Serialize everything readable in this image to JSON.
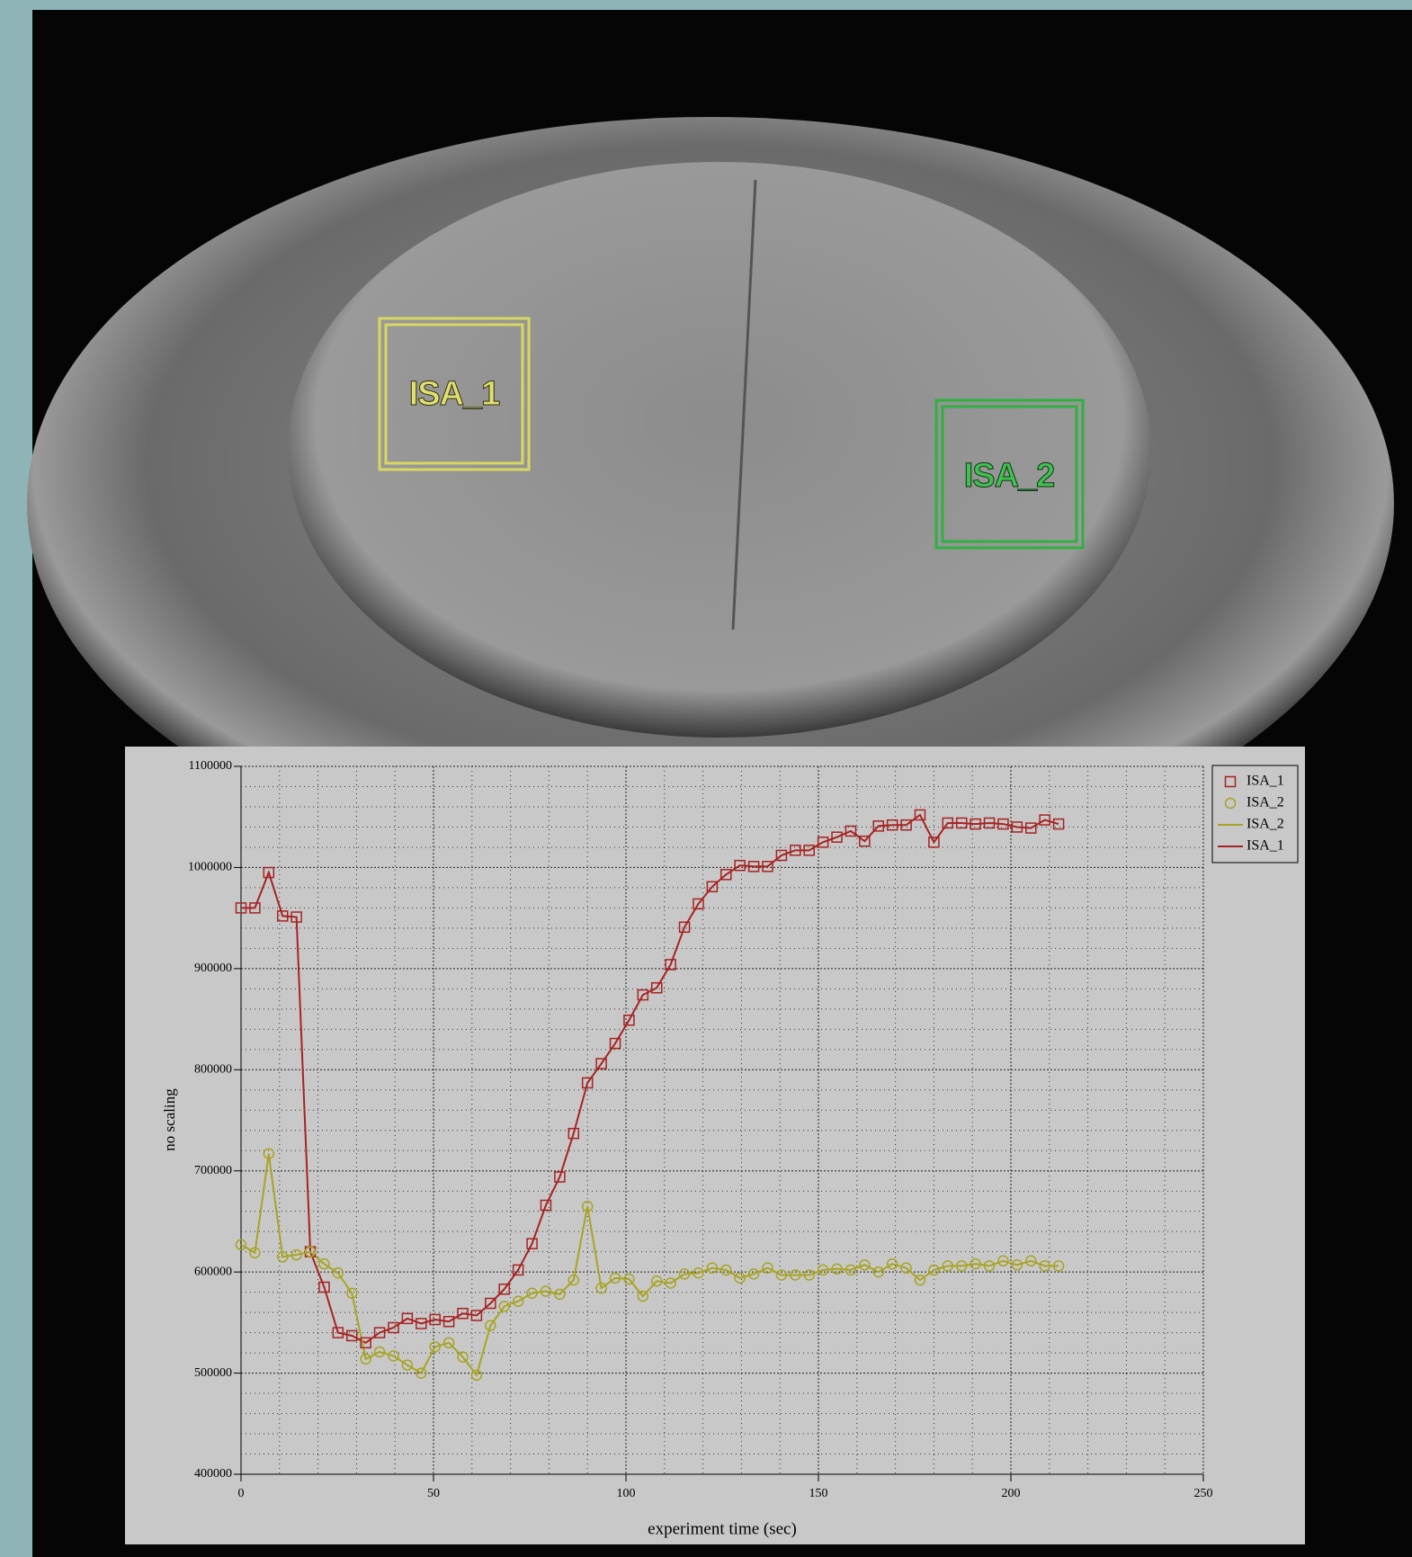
{
  "image": {
    "roi_labels": [
      "ISA_1",
      "ISA_2"
    ]
  },
  "chart_data": {
    "type": "line",
    "x_label": "experiment time (sec)",
    "y_label": "no scaling",
    "xlim": [
      0,
      250
    ],
    "xticks": [
      0,
      50,
      100,
      150,
      200,
      250
    ],
    "ylim": [
      400000,
      1100000
    ],
    "yticks": [
      400000,
      500000,
      600000,
      700000,
      800000,
      900000,
      1000000,
      1100000
    ],
    "grid": true,
    "legend_position": "upper-right",
    "legend": [
      "ISA_1",
      "ISA_2",
      "ISA_2",
      "ISA_1"
    ],
    "x": [
      0,
      3.6,
      7.2,
      10.8,
      14.4,
      18,
      21.6,
      25.2,
      28.8,
      32.4,
      36,
      39.6,
      43.2,
      46.8,
      50.4,
      54,
      57.6,
      61.2,
      64.8,
      68.4,
      72,
      75.6,
      79.2,
      82.8,
      86.4,
      90,
      93.6,
      97.2,
      100.8,
      104.4,
      108,
      111.6,
      115.2,
      118.8,
      122.4,
      126,
      129.6,
      133.2,
      136.8,
      140.4,
      144,
      147.6,
      151.2,
      154.8,
      158.4,
      162,
      165.6,
      169.2,
      172.8,
      176.4,
      180,
      183.6,
      187.2,
      190.8,
      194.4,
      198,
      201.6,
      205.2,
      208.8,
      212.4
    ],
    "series": [
      {
        "name": "ISA_1",
        "color": "#a82222",
        "marker": "square",
        "values": [
          960000,
          960000,
          995000,
          952000,
          951000,
          620000,
          585000,
          540000,
          537000,
          530000,
          540000,
          545000,
          554000,
          549000,
          553000,
          551000,
          559000,
          557000,
          569000,
          583000,
          602000,
          628000,
          666000,
          694000,
          737000,
          787000,
          806000,
          826000,
          849000,
          874000,
          881000,
          904000,
          941000,
          964000,
          981000,
          993000,
          1002000,
          1001000,
          1001000,
          1012000,
          1017000,
          1017000,
          1025000,
          1030000,
          1036000,
          1026000,
          1041000,
          1042000,
          1042000,
          1052000,
          1025000,
          1044000,
          1044000,
          1043000,
          1044000,
          1043000,
          1040000,
          1039000,
          1047000,
          1043000
        ]
      },
      {
        "name": "ISA_2",
        "color": "#a8a422",
        "marker": "circle",
        "values": [
          627000,
          619000,
          717000,
          615000,
          617000,
          620000,
          608000,
          599000,
          579000,
          514000,
          521000,
          517000,
          508000,
          500000,
          526000,
          530000,
          516000,
          498000,
          547000,
          566000,
          571000,
          579000,
          581000,
          578000,
          592000,
          665000,
          584000,
          594000,
          593000,
          576000,
          591000,
          589000,
          598000,
          599000,
          604000,
          602000,
          594000,
          598000,
          604000,
          597000,
          597000,
          597000,
          602000,
          603000,
          602000,
          607000,
          600000,
          608000,
          604000,
          592000,
          602000,
          606000,
          606000,
          608000,
          606000,
          611000,
          607000,
          611000,
          606000,
          606000
        ]
      }
    ]
  }
}
